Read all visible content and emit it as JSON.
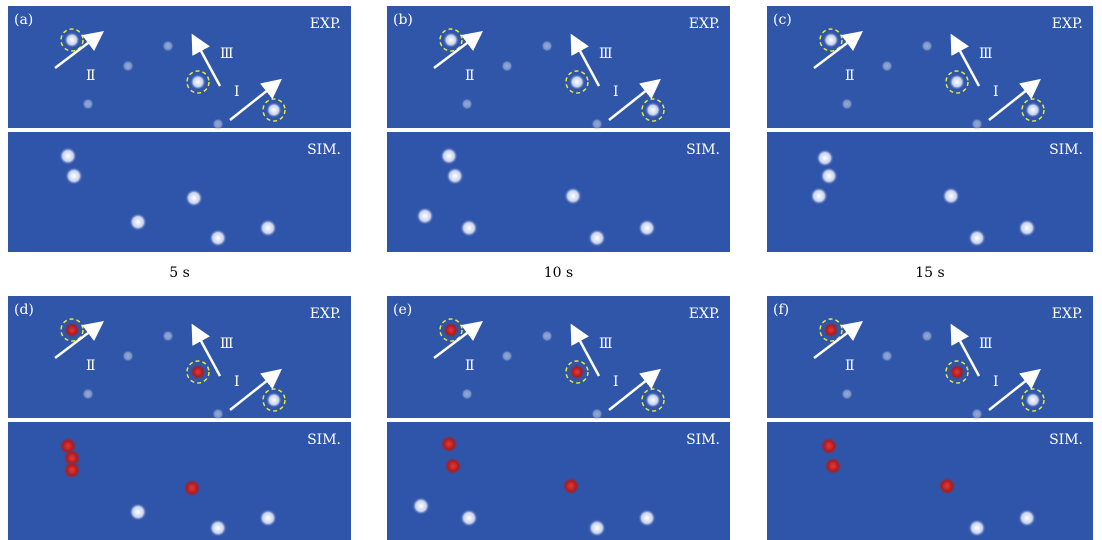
{
  "panels": [
    {
      "label": "(a)",
      "exp": "EXP.",
      "sim": "SIM.",
      "numerals": [
        "Ⅱ",
        "Ⅲ",
        "Ⅰ"
      ]
    },
    {
      "label": "(b)",
      "exp": "EXP.",
      "sim": "SIM.",
      "numerals": [
        "Ⅱ",
        "Ⅲ",
        "Ⅰ"
      ]
    },
    {
      "label": "(c)",
      "exp": "EXP.",
      "sim": "SIM.",
      "numerals": [
        "Ⅱ",
        "Ⅲ",
        "Ⅰ"
      ]
    },
    {
      "label": "(d)",
      "exp": "EXP.",
      "sim": "SIM.",
      "numerals": [
        "Ⅱ",
        "Ⅲ",
        "Ⅰ"
      ]
    },
    {
      "label": "(e)",
      "exp": "EXP.",
      "sim": "SIM.",
      "numerals": [
        "Ⅱ",
        "Ⅲ",
        "Ⅰ"
      ]
    },
    {
      "label": "(f)",
      "exp": "EXP.",
      "sim": "SIM.",
      "numerals": [
        "Ⅱ",
        "Ⅲ",
        "Ⅰ"
      ]
    }
  ],
  "captions": [
    "5 s",
    "10 s",
    "15 s"
  ]
}
